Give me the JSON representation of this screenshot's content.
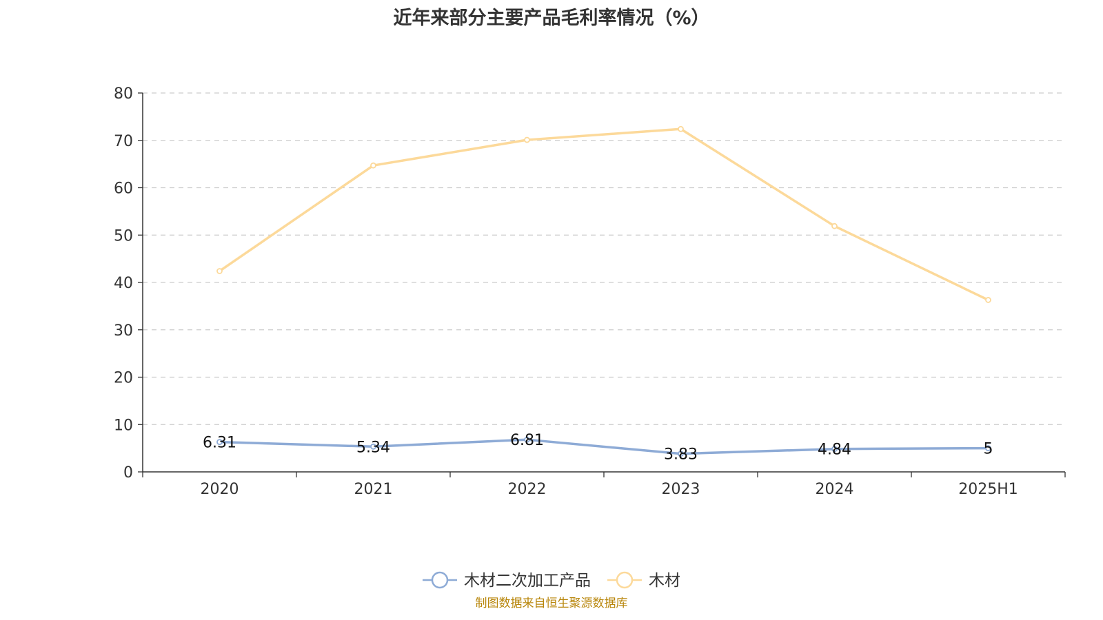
{
  "colors": {
    "series_1": "#8eabd6",
    "series_2": "#fcd99a",
    "grid": "#cccccc",
    "axis": "#333333",
    "source": "#b8860b"
  },
  "source_note": "制图数据来自恒生聚源数据库",
  "chart_data": {
    "type": "line",
    "title": "近年来部分主要产品毛利率情况（%）",
    "categories": [
      "2020",
      "2021",
      "2022",
      "2023",
      "2024",
      "2025H1"
    ],
    "y_ticks": [
      "0",
      "10",
      "20",
      "30",
      "40",
      "50",
      "60",
      "70",
      "80"
    ],
    "ylim": [
      0,
      80
    ],
    "grid": true,
    "legend_position": "bottom",
    "series": [
      {
        "name": "木材二次加工产品",
        "values": [
          6.31,
          5.34,
          6.81,
          3.83,
          4.84,
          5
        ],
        "labels": [
          "6.31",
          "5.34",
          "6.81",
          "3.83",
          "4.84",
          "5"
        ],
        "show_labels": true
      },
      {
        "name": "木材",
        "values": [
          42.4,
          64.7,
          70.1,
          72.4,
          51.9,
          36.3
        ],
        "show_labels": false
      }
    ]
  }
}
